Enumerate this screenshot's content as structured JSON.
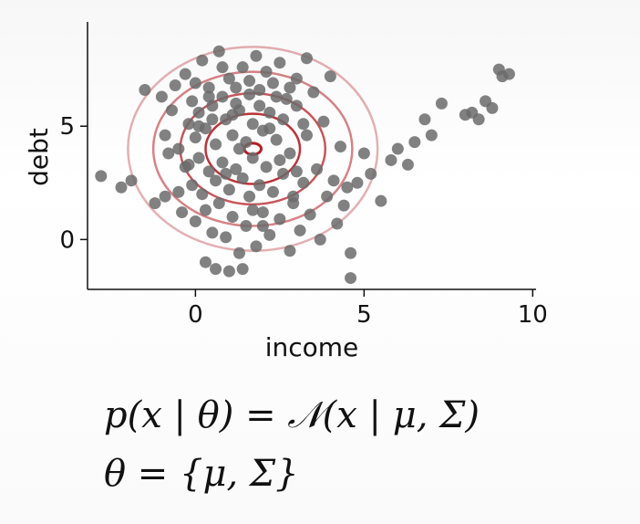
{
  "chart_data": {
    "type": "scatter",
    "xlabel": "income",
    "ylabel": "debt",
    "xlim": [
      -3.2,
      10.1
    ],
    "ylim": [
      -2.2,
      9.6
    ],
    "xticks": [
      0,
      5,
      10
    ],
    "yticks": [
      0,
      5
    ],
    "grid": false,
    "point_color": "#6b6b6b",
    "contour_color": "#b51e24",
    "gaussian": {
      "mean": [
        1.7,
        4.0
      ],
      "contour_radii_x": [
        0.25,
        1.4,
        2.15,
        2.95,
        3.7
      ],
      "contour_radii_y": [
        0.25,
        1.55,
        2.45,
        3.4,
        4.5
      ],
      "contour_opacity": [
        1.0,
        0.9,
        0.75,
        0.55,
        0.35
      ]
    },
    "points": [
      [
        -2.8,
        2.8
      ],
      [
        -2.2,
        2.3
      ],
      [
        -1.9,
        2.6
      ],
      [
        -1.5,
        6.6
      ],
      [
        -1.2,
        1.6
      ],
      [
        -1.0,
        6.3
      ],
      [
        -0.9,
        4.6
      ],
      [
        -0.8,
        3.8
      ],
      [
        -0.7,
        5.7
      ],
      [
        -0.6,
        6.8
      ],
      [
        -0.5,
        4.0
      ],
      [
        -0.5,
        2.1
      ],
      [
        -0.4,
        1.2
      ],
      [
        -0.3,
        3.2
      ],
      [
        -0.3,
        7.3
      ],
      [
        -0.2,
        5.1
      ],
      [
        -0.1,
        2.4
      ],
      [
        -0.1,
        6.1
      ],
      [
        0.0,
        4.5
      ],
      [
        0.0,
        0.8
      ],
      [
        0.1,
        3.6
      ],
      [
        0.1,
        5.6
      ],
      [
        0.2,
        2.0
      ],
      [
        0.2,
        7.9
      ],
      [
        0.3,
        1.3
      ],
      [
        0.3,
        4.9
      ],
      [
        0.4,
        6.7
      ],
      [
        0.4,
        3.0
      ],
      [
        0.5,
        0.3
      ],
      [
        0.5,
        5.9
      ],
      [
        0.6,
        2.6
      ],
      [
        0.6,
        4.2
      ],
      [
        0.7,
        8.3
      ],
      [
        0.7,
        1.6
      ],
      [
        0.8,
        6.3
      ],
      [
        0.8,
        3.4
      ],
      [
        0.9,
        0.1
      ],
      [
        0.9,
        5.3
      ],
      [
        1.0,
        2.2
      ],
      [
        1.0,
        7.1
      ],
      [
        1.1,
        4.6
      ],
      [
        1.1,
        1.0
      ],
      [
        1.2,
        6.0
      ],
      [
        1.2,
        3.1
      ],
      [
        1.3,
        -0.6
      ],
      [
        1.3,
        5.7
      ],
      [
        1.4,
        2.7
      ],
      [
        1.4,
        7.6
      ],
      [
        1.5,
        4.3
      ],
      [
        1.5,
        0.6
      ],
      [
        1.6,
        6.4
      ],
      [
        1.6,
        1.9
      ],
      [
        1.7,
        5.1
      ],
      [
        1.7,
        3.6
      ],
      [
        1.8,
        8.1
      ],
      [
        1.8,
        -0.3
      ],
      [
        1.9,
        6.6
      ],
      [
        1.9,
        2.4
      ],
      [
        2.0,
        4.8
      ],
      [
        2.0,
        1.2
      ],
      [
        2.1,
        7.4
      ],
      [
        2.1,
        3.2
      ],
      [
        2.2,
        5.6
      ],
      [
        2.2,
        0.2
      ],
      [
        2.3,
        6.9
      ],
      [
        2.3,
        2.1
      ],
      [
        2.4,
        4.4
      ],
      [
        2.5,
        7.8
      ],
      [
        2.5,
        0.9
      ],
      [
        2.6,
        5.3
      ],
      [
        2.6,
        2.9
      ],
      [
        2.7,
        6.2
      ],
      [
        2.8,
        -0.5
      ],
      [
        2.8,
        3.8
      ],
      [
        2.9,
        1.6
      ],
      [
        3.0,
        5.9
      ],
      [
        3.0,
        7.1
      ],
      [
        3.1,
        0.4
      ],
      [
        3.2,
        2.5
      ],
      [
        3.3,
        4.6
      ],
      [
        3.3,
        8.0
      ],
      [
        3.4,
        1.1
      ],
      [
        3.5,
        6.5
      ],
      [
        3.6,
        3.1
      ],
      [
        3.7,
        0.0
      ],
      [
        3.8,
        5.2
      ],
      [
        3.9,
        1.9
      ],
      [
        4.0,
        7.2
      ],
      [
        4.1,
        2.6
      ],
      [
        4.2,
        0.7
      ],
      [
        4.3,
        4.1
      ],
      [
        4.4,
        1.5
      ],
      [
        4.5,
        2.3
      ],
      [
        4.6,
        -0.6
      ],
      [
        4.6,
        -1.7
      ],
      [
        4.8,
        2.5
      ],
      [
        5.0,
        3.8
      ],
      [
        5.2,
        2.9
      ],
      [
        5.5,
        1.7
      ],
      [
        5.8,
        3.5
      ],
      [
        6.0,
        4.0
      ],
      [
        6.3,
        3.3
      ],
      [
        6.5,
        4.3
      ],
      [
        6.8,
        5.3
      ],
      [
        7.0,
        4.6
      ],
      [
        7.3,
        6.0
      ],
      [
        8.0,
        5.5
      ],
      [
        8.2,
        5.6
      ],
      [
        8.4,
        5.3
      ],
      [
        8.6,
        6.1
      ],
      [
        8.8,
        5.8
      ],
      [
        9.0,
        7.5
      ],
      [
        9.1,
        7.2
      ],
      [
        9.3,
        7.3
      ],
      [
        -0.9,
        1.9
      ],
      [
        0.0,
        6.9
      ],
      [
        0.6,
        -1.3
      ],
      [
        1.0,
        -1.4
      ],
      [
        1.4,
        -1.3
      ],
      [
        0.3,
        -1.0
      ],
      [
        2.0,
        0.6
      ],
      [
        2.5,
        3.5
      ],
      [
        1.2,
        6.7
      ],
      [
        0.8,
        7.6
      ],
      [
        1.6,
        7.0
      ],
      [
        2.4,
        6.3
      ],
      [
        0.1,
        5.0
      ],
      [
        0.5,
        5.3
      ],
      [
        1.1,
        5.5
      ],
      [
        1.9,
        5.9
      ],
      [
        2.8,
        6.7
      ],
      [
        3.2,
        5.1
      ],
      [
        0.4,
        6.3
      ],
      [
        1.3,
        4.0
      ],
      [
        2.2,
        4.9
      ],
      [
        3.0,
        3.0
      ],
      [
        -0.2,
        3.3
      ],
      [
        0.9,
        2.9
      ],
      [
        1.7,
        1.3
      ],
      [
        2.9,
        1.9
      ]
    ]
  },
  "formula": {
    "line1": "p(x | θ) = 𝒩(x | μ, Σ)",
    "line2": "θ = {μ, Σ}"
  }
}
